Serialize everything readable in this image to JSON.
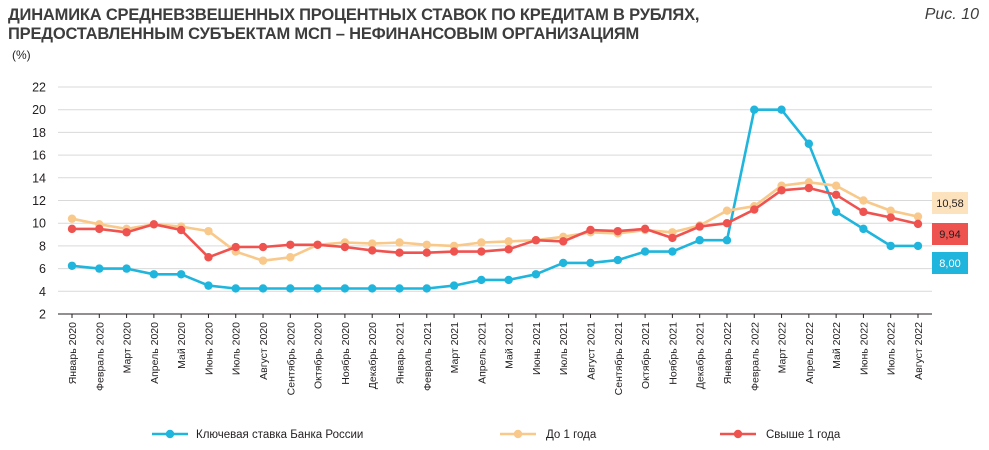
{
  "header": {
    "title_line1": "ДИНАМИКА СРЕДНЕВЗВЕШЕННЫХ ПРОЦЕНТНЫХ СТАВОК ПО КРЕДИТАМ В РУБЛЯХ,",
    "title_line2": "ПРЕДОСТАВЛЕННЫМ СУБЪЕКТАМ МСП – НЕФИНАНСОВЫМ ОРГАНИЗАЦИЯМ",
    "figure_label": "Рис. 10",
    "unit": "(%)"
  },
  "colors": {
    "key_rate": "#1fb5dc",
    "up_to_1y": "#f8c98a",
    "over_1y": "#ef5350",
    "grid": "#d9d9d9"
  },
  "chart_data": {
    "type": "line",
    "title": "ДИНАМИКА СРЕДНЕВЗВЕШЕННЫХ ПРОЦЕНТНЫХ СТАВОК ПО КРЕДИТАМ В РУБЛЯХ, ПРЕДОСТАВЛЕННЫМ СУБЪЕКТАМ МСП – НЕФИНАНСОВЫМ ОРГАНИЗАЦИЯМ",
    "ylabel": "(%)",
    "ylim": [
      2,
      22
    ],
    "yticks": [
      "2",
      "4",
      "6",
      "8",
      "10",
      "12",
      "14",
      "16",
      "18",
      "20",
      "22"
    ],
    "grid": true,
    "legend_position": "bottom",
    "x": [
      "Январь 2020",
      "Февраль 2020",
      "Март 2020",
      "Апрель 2020",
      "Май 2020",
      "Июнь 2020",
      "Июль 2020",
      "Август 2020",
      "Сентябрь 2020",
      "Октябрь 2020",
      "Ноябрь 2020",
      "Декабрь 2020",
      "Январь 2021",
      "Февраль 2021",
      "Март 2021",
      "Апрель 2021",
      "Май 2021",
      "Июнь 2021",
      "Июль 2021",
      "Август 2021",
      "Сентябрь 2021",
      "Октябрь 2021",
      "Ноябрь 2021",
      "Декабрь 2021",
      "Январь 2022",
      "Февраль 2022",
      "Март 2022",
      "Апрель 2022",
      "Май 2022",
      "Июнь 2022",
      "Июль 2022",
      "Август 2022"
    ],
    "series": [
      {
        "name": "Ключевая ставка Банка России",
        "color": "#1fb5dc",
        "end_label": "8,00",
        "values": [
          6.25,
          6.0,
          6.0,
          5.5,
          5.5,
          4.5,
          4.25,
          4.25,
          4.25,
          4.25,
          4.25,
          4.25,
          4.25,
          4.25,
          4.5,
          5.0,
          5.0,
          5.5,
          6.5,
          6.5,
          6.75,
          7.5,
          7.5,
          8.5,
          8.5,
          20.0,
          20.0,
          17.0,
          11.0,
          9.5,
          8.0,
          8.0
        ]
      },
      {
        "name": "До 1 года",
        "color": "#f8c98a",
        "end_label": "10,58",
        "values": [
          10.4,
          9.9,
          9.5,
          9.9,
          9.7,
          9.3,
          7.5,
          6.7,
          7.0,
          8.1,
          8.3,
          8.2,
          8.3,
          8.1,
          8.0,
          8.3,
          8.4,
          8.5,
          8.8,
          9.2,
          9.1,
          9.4,
          9.2,
          9.8,
          11.1,
          11.5,
          13.3,
          13.6,
          13.3,
          12.0,
          11.1,
          10.58
        ]
      },
      {
        "name": "Свыше 1 года",
        "color": "#ef5350",
        "end_label": "9,94",
        "values": [
          9.5,
          9.5,
          9.2,
          9.9,
          9.4,
          7.0,
          7.9,
          7.9,
          8.1,
          8.1,
          7.9,
          7.6,
          7.4,
          7.4,
          7.5,
          7.5,
          7.7,
          8.5,
          8.4,
          9.4,
          9.3,
          9.5,
          8.7,
          9.7,
          10.0,
          11.2,
          12.9,
          13.1,
          12.5,
          11.0,
          10.5,
          9.94
        ]
      }
    ]
  }
}
